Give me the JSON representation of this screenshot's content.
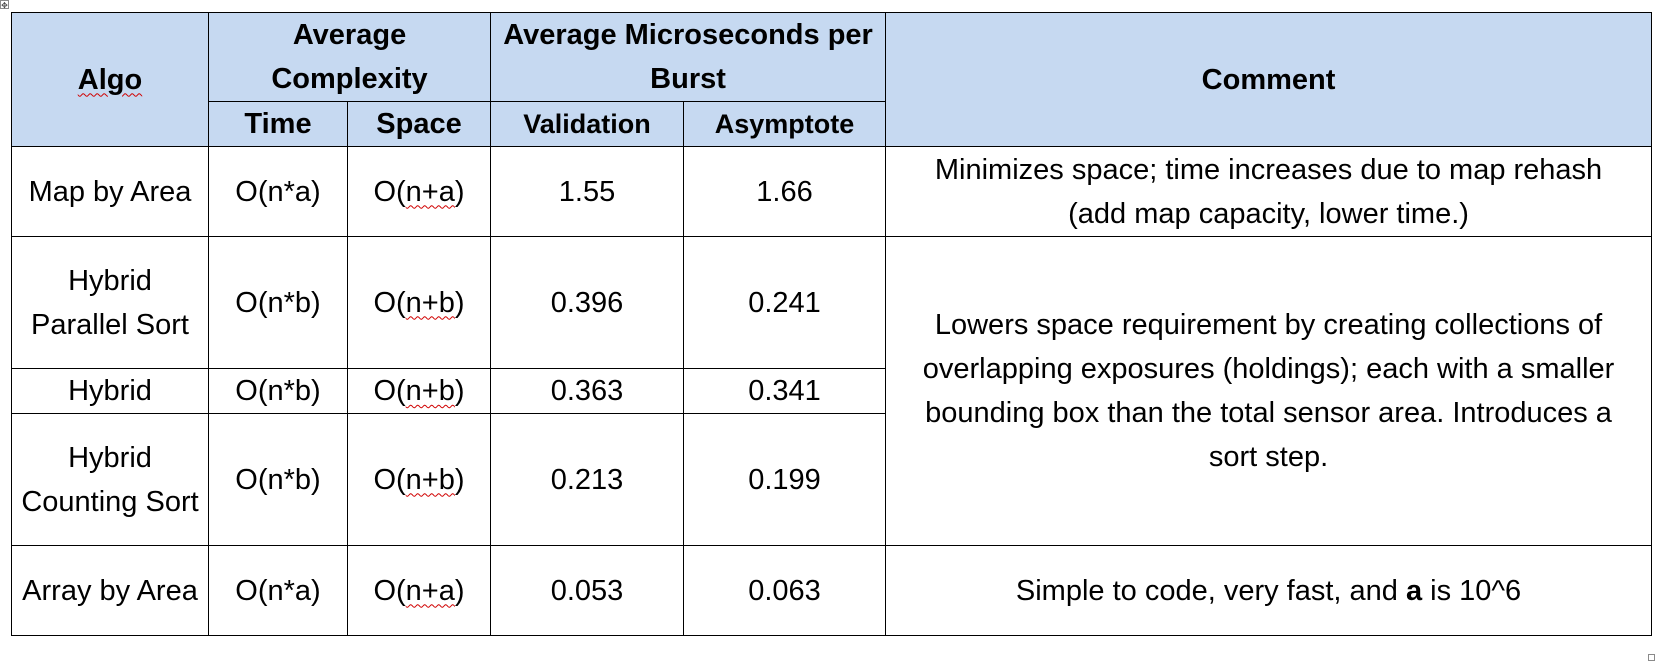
{
  "header": {
    "algo": "Algo",
    "avg_complexity": "Average Complexity",
    "avg_microseconds": "Average Microseconds per Burst",
    "comment": "Comment",
    "time": "Time",
    "space": "Space",
    "validation": "Validation",
    "asymptote": "Asymptote"
  },
  "rows": [
    {
      "algo": "Map by Area",
      "time": "O(n*a)",
      "space_prefix": "O(",
      "space_var": "n+a",
      "space_suffix": ")",
      "validation": "1.55",
      "asymptote": "1.66",
      "comment": "Minimizes space; time increases due to map rehash (add map capacity, lower time.)"
    },
    {
      "algo": "Hybrid Parallel Sort",
      "time": "O(n*b)",
      "space_prefix": "O(",
      "space_var": "n+b",
      "space_suffix": ")",
      "validation": "0.396",
      "asymptote": "0.241"
    },
    {
      "algo": "Hybrid",
      "time": "O(n*b)",
      "space_prefix": "O(",
      "space_var": "n+b",
      "space_suffix": ")",
      "validation": "0.363",
      "asymptote": "0.341"
    },
    {
      "algo": "Hybrid Counting Sort",
      "time": "O(n*b)",
      "space_prefix": "O(",
      "space_var": "n+b",
      "space_suffix": ")",
      "validation": "0.213",
      "asymptote": "0.199"
    },
    {
      "algo": "Array by Area",
      "time": "O(n*a)",
      "space_prefix": "O(",
      "space_var": "n+a",
      "space_suffix": ")",
      "validation": "0.053",
      "asymptote": "0.063",
      "comment_before": "Simple to code, very fast, and ",
      "comment_bold": "a",
      "comment_after": " is 10^6"
    }
  ],
  "hybrid_comment": "Lowers space requirement by creating collections of overlapping exposures (holdings); each with a smaller bounding box than the total sensor area. Introduces a sort step.",
  "handles": {
    "move_glyph": "✥"
  }
}
